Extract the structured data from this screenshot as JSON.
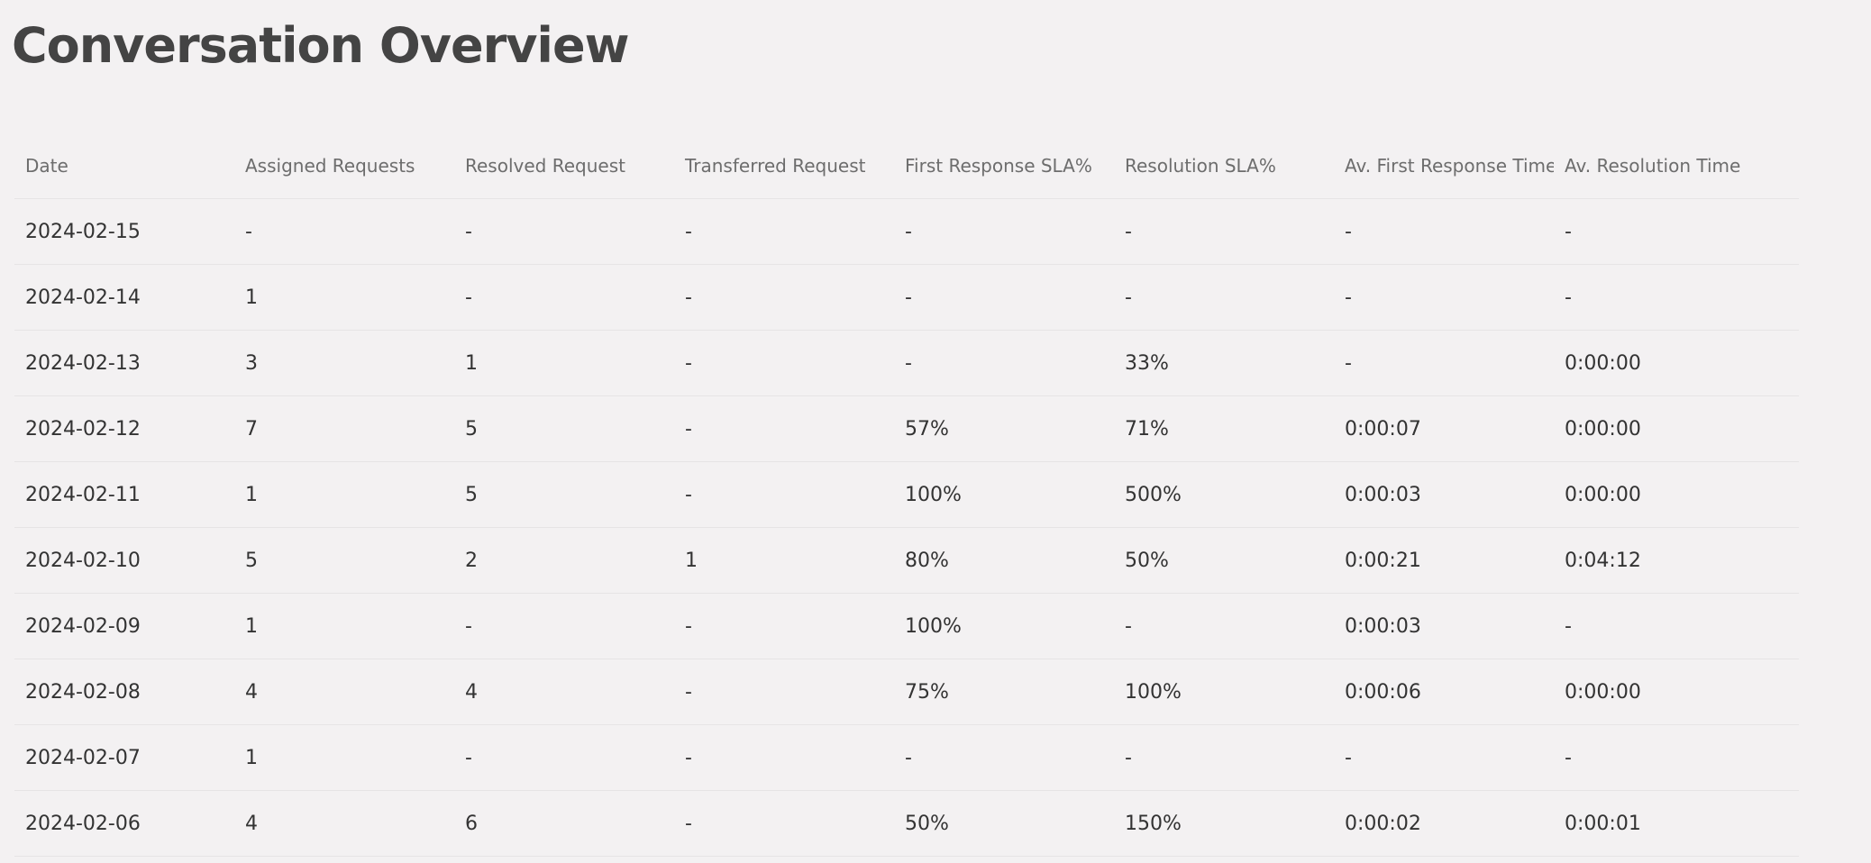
{
  "page": {
    "title": "Conversation Overview"
  },
  "table": {
    "headers": [
      "Date",
      "Assigned Requests",
      "Resolved Request",
      "Transferred Request",
      "First Response SLA%",
      "Resolution SLA%",
      "Av. First Response Time",
      "Av. Resolution Time"
    ],
    "rows": [
      [
        "2024-02-15",
        "-",
        "-",
        "-",
        "-",
        "-",
        "-",
        "-"
      ],
      [
        "2024-02-14",
        "1",
        "-",
        "-",
        "-",
        "-",
        "-",
        "-"
      ],
      [
        "2024-02-13",
        "3",
        "1",
        "-",
        "-",
        "33%",
        "-",
        "0:00:00"
      ],
      [
        "2024-02-12",
        "7",
        "5",
        "-",
        "57%",
        "71%",
        "0:00:07",
        "0:00:00"
      ],
      [
        "2024-02-11",
        "1",
        "5",
        "-",
        "100%",
        "500%",
        "0:00:03",
        "0:00:00"
      ],
      [
        "2024-02-10",
        "5",
        "2",
        "1",
        "80%",
        "50%",
        "0:00:21",
        "0:04:12"
      ],
      [
        "2024-02-09",
        "1",
        "-",
        "-",
        "100%",
        "-",
        "0:00:03",
        "-"
      ],
      [
        "2024-02-08",
        "4",
        "4",
        "-",
        "75%",
        "100%",
        "0:00:06",
        "0:00:00"
      ],
      [
        "2024-02-07",
        "1",
        "-",
        "-",
        "-",
        "-",
        "-",
        "-"
      ],
      [
        "2024-02-06",
        "4",
        "6",
        "-",
        "50%",
        "150%",
        "0:00:02",
        "0:00:01"
      ]
    ]
  }
}
